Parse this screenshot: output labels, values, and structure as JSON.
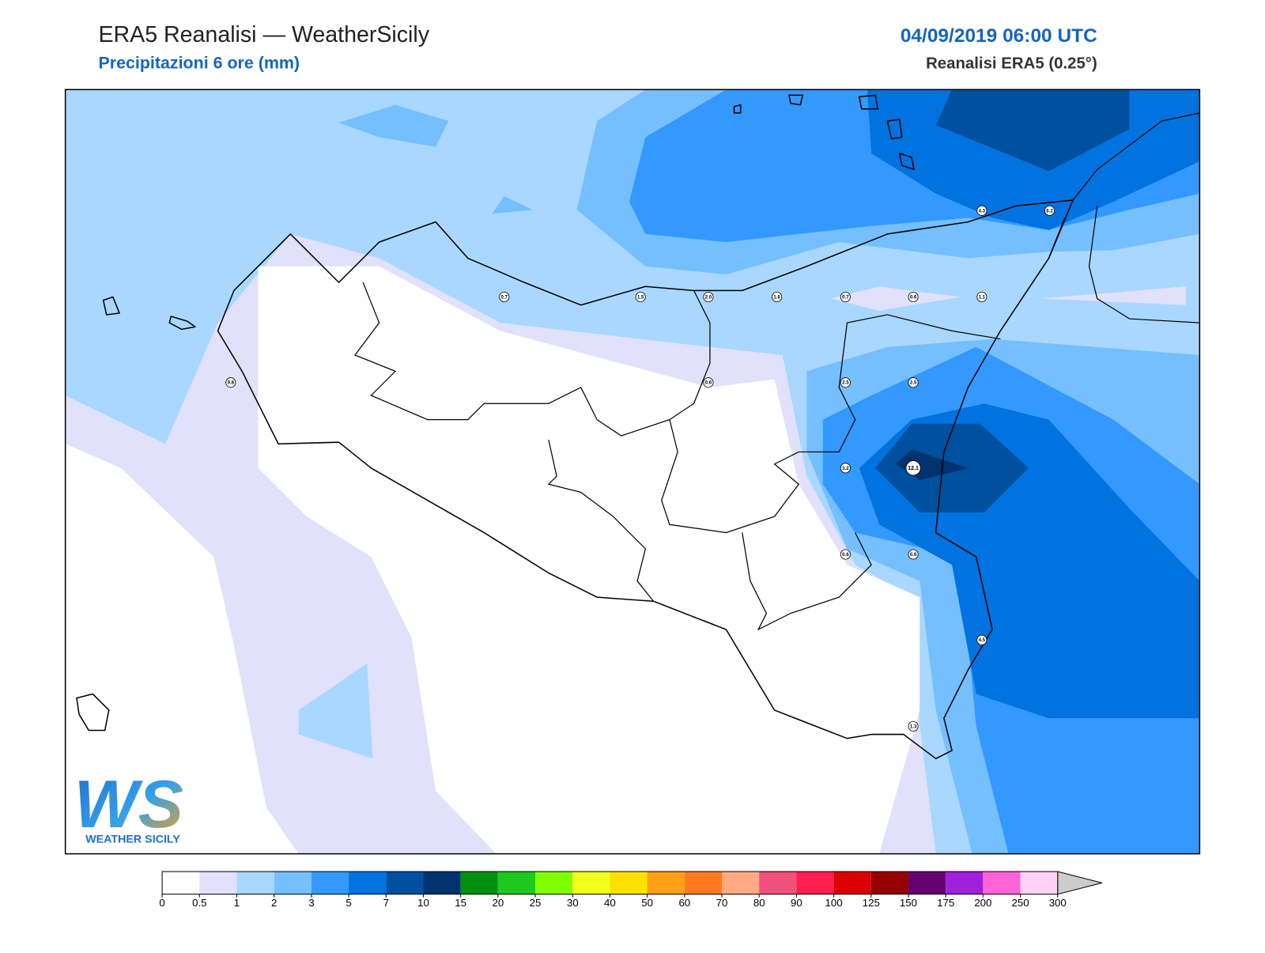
{
  "header": {
    "title": "ERA5 Reanalisi — WeatherSicily",
    "subtitle": "Precipitazioni 6 ore (mm)",
    "datetime": "04/09/2019 06:00 UTC",
    "source": "Reanalisi ERA5 (0.25°)"
  },
  "map": {
    "stations": [
      "0.7",
      "1.5",
      "2.0",
      "1.6",
      "0.7",
      "0.6",
      "1.1",
      "4.3",
      "6.2",
      "0.8",
      "0.6",
      "2.5",
      "2.5",
      "3.2",
      "12.1",
      "0.6",
      "0.6",
      "4.5",
      "1.3"
    ]
  },
  "logo": {
    "mark": "WS",
    "text": "WEATHER SICILY"
  },
  "colorbar": {
    "ticks": [
      0,
      0.5,
      1,
      2,
      3,
      5,
      7,
      10,
      15,
      20,
      25,
      30,
      40,
      50,
      60,
      70,
      80,
      90,
      100,
      125,
      150,
      175,
      200,
      250,
      300
    ],
    "colors": [
      "#ffffff",
      "#e1e1fc",
      "#a9d7ff",
      "#75bfff",
      "#3399ff",
      "#0073e0",
      "#0050a0",
      "#00326e",
      "#009010",
      "#1ec81e",
      "#80ff00",
      "#f0ff1e",
      "#ffe100",
      "#ffa015",
      "#ff7a1e",
      "#ffaa82",
      "#f0507a",
      "#ff1e50",
      "#dc0000",
      "#960000",
      "#640070",
      "#a020dc",
      "#ff64d7",
      "#ffd2f5"
    ]
  }
}
